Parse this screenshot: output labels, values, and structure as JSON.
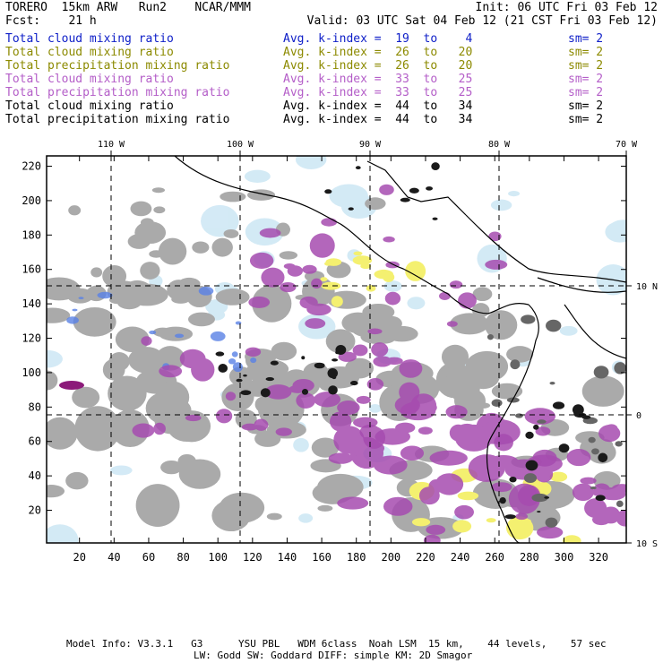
{
  "header": {
    "model": "TORERO  15km ARW   Run2    NCAR/MMM",
    "init": "Init: 06 UTC Fri 03 Feb 12",
    "fcst": "Fcst:    21 h",
    "valid": "Valid: 03 UTC Sat 04 Feb 12 (21 CST Fri 03 Feb 12)"
  },
  "legend": [
    {
      "field": "Total cloud mixing ratio",
      "index": "Avg. k-index =  19  to    4",
      "sm": "sm= 2",
      "color": "#1020c8"
    },
    {
      "field": "Total cloud mixing ratio",
      "index": "Avg. k-index =  26  to   20",
      "sm": "sm= 2",
      "color": "#8c8a00"
    },
    {
      "field": "Total precipitation mixing ratio",
      "index": "Avg. k-index =  26  to   20",
      "sm": "sm= 2",
      "color": "#8c8a00"
    },
    {
      "field": "Total cloud mixing ratio",
      "index": "Avg. k-index =  33  to   25",
      "sm": "sm= 2",
      "color": "#b45ec8"
    },
    {
      "field": "Total precipitation mixing ratio",
      "index": "Avg. k-index =  33  to   25",
      "sm": "sm= 2",
      "color": "#b45ec8"
    },
    {
      "field": "Total cloud mixing ratio",
      "index": "Avg. k-index =  44  to   34",
      "sm": "sm= 2",
      "color": "#000000"
    },
    {
      "field": "Total precipitation mixing ratio",
      "index": "Avg. k-index =  44  to   34",
      "sm": "sm= 2",
      "color": "#000000"
    }
  ],
  "map": {
    "lon_labels": [
      "110 W",
      "100 W",
      "90 W",
      "80 W",
      "70 W"
    ],
    "lat_labels": [
      "10 N",
      "0",
      "10 S"
    ],
    "x_ticks": [
      "20",
      "40",
      "60",
      "80",
      "100",
      "120",
      "140",
      "160",
      "180",
      "200",
      "220",
      "240",
      "260",
      "280",
      "300",
      "320"
    ],
    "y_ticks": [
      "20",
      "40",
      "60",
      "80",
      "100",
      "120",
      "140",
      "160",
      "180",
      "200",
      "220"
    ],
    "x_range": [
      1,
      336
    ],
    "y_range": [
      1,
      226
    ],
    "colors": {
      "light_blue": "#cfe8f5",
      "blue": "#5a82e6",
      "gray": "#aaaaaa",
      "dark_gray": "#666666",
      "black": "#1a1a1a",
      "purple": "#a64cb0",
      "magenta": "#8c1a7a",
      "yellow": "#f4f070"
    }
  },
  "footer": {
    "line1": "Model Info: V3.3.1   G3      YSU PBL   WDM 6class  Noah LSM  15 km,    44 levels,    57 sec",
    "line2": "LW: Godd SW: Goddard DIFF: simple KM: 2D Smagor"
  }
}
